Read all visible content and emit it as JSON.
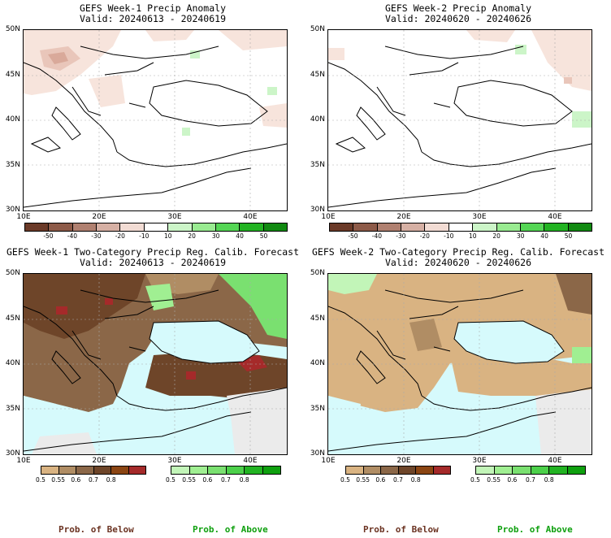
{
  "panels": [
    {
      "title": "GEFS Week-1 Precip Anomaly",
      "valid": "Valid: 20240613 - 20240619"
    },
    {
      "title": "GEFS Week-2 Precip Anomaly",
      "valid": "Valid: 20240620 - 20240626"
    },
    {
      "title": "GEFS Week-1 Two-Category Precip Reg. Calib. Forecast",
      "valid": "Valid: 20240613 - 20240619"
    },
    {
      "title": "GEFS Week-2 Two-Category Precip Reg. Calib. Forecast",
      "valid": "Valid: 20240620 - 20240626"
    }
  ],
  "lat_labels": [
    "50N",
    "45N",
    "40N",
    "35N",
    "30N"
  ],
  "lon_labels": [
    "10E",
    "20E",
    "30E",
    "40E"
  ],
  "anomaly_scale": {
    "labels": [
      "-50",
      "-40",
      "-30",
      "-20",
      "-10",
      "10",
      "20",
      "30",
      "40",
      "50"
    ],
    "colors": [
      "#6b3a28",
      "#8d5a48",
      "#b08070",
      "#d6b0a4",
      "#f2dcd4",
      "#ffffff",
      "#ccf5c8",
      "#99eb91",
      "#55d655",
      "#22b322",
      "#118a11"
    ]
  },
  "prob_below_scale": {
    "labels": [
      "0.5",
      "0.55",
      "0.6",
      "0.7",
      "0.8"
    ],
    "colors": [
      "#d9b382",
      "#b08d64",
      "#8b6748",
      "#6e4529",
      "#8b4513",
      "#a52a2a"
    ]
  },
  "prob_above_scale": {
    "labels": [
      "0.5",
      "0.55",
      "0.6",
      "0.7",
      "0.8"
    ],
    "colors": [
      "#c2f5b8",
      "#a0ef92",
      "#7ae070",
      "#4cd04a",
      "#22b322",
      "#0fa00f"
    ]
  },
  "footer": {
    "below": "Prob. of Below",
    "above": "Prob. of Above"
  },
  "colors": {
    "below_label": "#6b3322",
    "above_label": "#0fa00f",
    "sea": "#d6fafc",
    "land_none": "#ebebeb"
  }
}
